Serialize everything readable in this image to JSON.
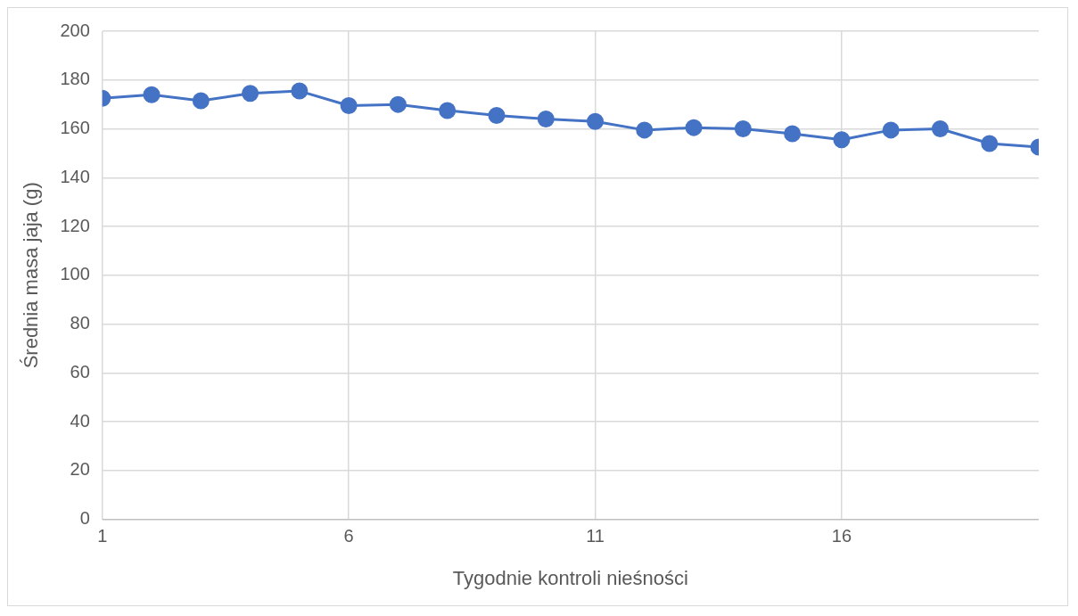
{
  "chart_data": {
    "type": "line",
    "xlabel": "Tygodnie kontroli nieśności",
    "ylabel": "Średnia masa jaja (g)",
    "x": [
      1,
      2,
      3,
      4,
      5,
      6,
      7,
      8,
      9,
      10,
      11,
      12,
      13,
      14,
      15,
      16,
      17,
      18,
      19,
      20
    ],
    "series": [
      {
        "color": "#4472c4",
        "values": [
          172.5,
          174,
          171.5,
          174.5,
          175.5,
          169.5,
          170,
          167.5,
          165.5,
          164,
          163,
          159.5,
          160.5,
          160,
          158,
          155.5,
          159.5,
          160,
          154,
          152.5
        ]
      }
    ],
    "xlim": [
      1,
      20
    ],
    "xticks": [
      1,
      6,
      11,
      16
    ],
    "ylim": [
      0,
      200
    ],
    "yticks": [
      0,
      20,
      40,
      60,
      80,
      100,
      120,
      140,
      160,
      180,
      200
    ],
    "grid": true,
    "marker": "circle",
    "line_style": "solid",
    "legend": false
  }
}
